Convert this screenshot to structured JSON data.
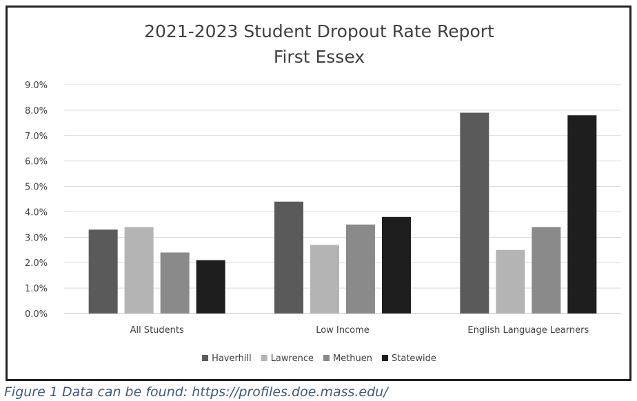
{
  "chart_data": {
    "type": "bar",
    "title": "2021-2023 Student Dropout Rate Report",
    "subtitle": "First Essex",
    "xlabel": "",
    "ylabel": "",
    "categories": [
      "All Students",
      "Low Income",
      "English Language Learners"
    ],
    "series": [
      {
        "name": "Haverhill",
        "color": "#5a5a5a",
        "values": [
          3.3,
          4.4,
          7.9
        ]
      },
      {
        "name": "Lawrence",
        "color": "#b4b4b4",
        "values": [
          3.4,
          2.7,
          2.5
        ]
      },
      {
        "name": "Methuen",
        "color": "#8a8a8a",
        "values": [
          2.4,
          3.5,
          3.4
        ]
      },
      {
        "name": "Statewide",
        "color": "#1e1e1e",
        "values": [
          2.1,
          3.8,
          7.8
        ]
      }
    ],
    "ylim": [
      0,
      9
    ],
    "yticks": [
      "0.0%",
      "1.0%",
      "2.0%",
      "3.0%",
      "4.0%",
      "5.0%",
      "6.0%",
      "7.0%",
      "8.0%",
      "9.0%"
    ],
    "grid": true,
    "legend_position": "bottom"
  },
  "caption": "Figure 1 Data can be found: https://profiles.doe.mass.edu/"
}
